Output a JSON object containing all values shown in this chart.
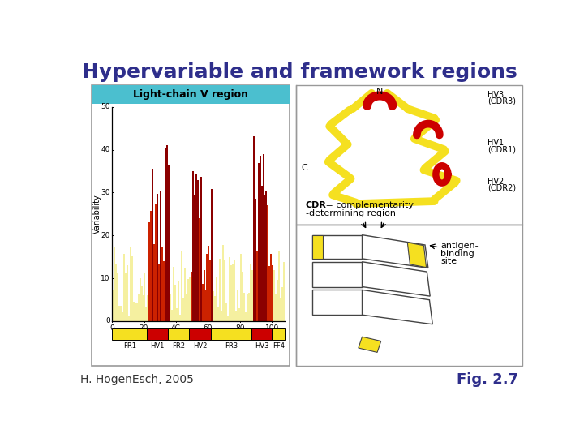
{
  "title": "Hypervariable and framework regions",
  "title_color": "#2E2E8B",
  "title_fontsize": 18,
  "subtitle_left": "H. HogenEsch, 2005",
  "subtitle_right": "Fig. 2.7",
  "subtitle_color": "#2E2E8B",
  "subtitle_fontsize": 10,
  "bg_color": "#ffffff",
  "chart_header_bg": "#4BBFCF",
  "chart_header_text": "Light-chain V region",
  "bar_yellow": "#F5F0A0",
  "bar_dark_red": "#8B0000",
  "bar_red": "#CC2200",
  "fr_yellow": "#F5E020",
  "fr_red": "#CC0000",
  "fr_labels": [
    "FR1",
    "HV1",
    "FR2",
    "HV2",
    "FR3",
    "HV3",
    "FF4"
  ],
  "cdr_text_bold": "CDR",
  "cdr_text_1": " = complementarity",
  "cdr_text_2": "-determining region",
  "antigen_text_1": "antigen-",
  "antigen_text_2": "binding",
  "antigen_text_3": "site",
  "panel_border": "#999999",
  "N_label": "N",
  "C_label": "C",
  "hv3_label": "HV3\n(CDR3)",
  "hv1_label": "HV1\n(CDR1)",
  "hv2_label": "HV2\n(CDR2)"
}
